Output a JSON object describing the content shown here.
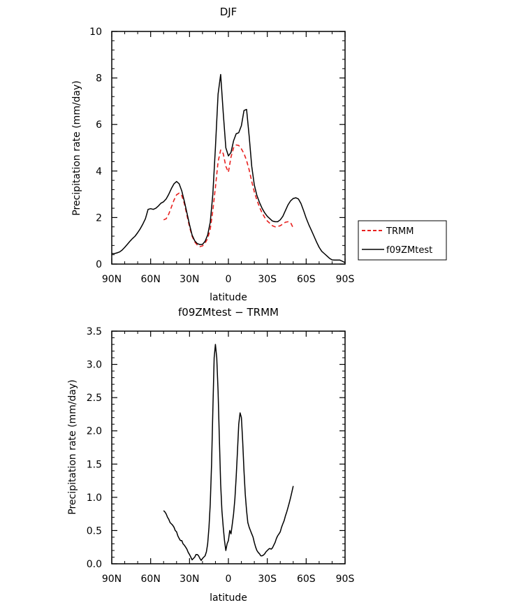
{
  "chart_data": [
    {
      "type": "line",
      "title": "DJF",
      "xlabel": "latitude",
      "ylabel": "Precipitation rate (mm/day)",
      "x_ticks": [
        "90N",
        "60N",
        "30N",
        "0",
        "30S",
        "60S",
        "90S"
      ],
      "x_tick_values": [
        90,
        60,
        30,
        0,
        -30,
        -60,
        -90
      ],
      "xlim": [
        90,
        -90
      ],
      "ylim": [
        0,
        10
      ],
      "y_ticks": [
        "0",
        "2",
        "4",
        "6",
        "8",
        "10"
      ],
      "y_tick_values": [
        0,
        2,
        4,
        6,
        8,
        10
      ],
      "legend": {
        "placement": "right",
        "items": [
          {
            "label": "TRMM",
            "color": "#e8201e",
            "style": "dashed"
          },
          {
            "label": "f09ZMtest",
            "color": "#000000",
            "style": "solid"
          }
        ]
      },
      "series": [
        {
          "name": "TRMM",
          "color": "#e8201e",
          "style": "dashed",
          "x": [
            50,
            48,
            46,
            44,
            42,
            40,
            38,
            36,
            34,
            32,
            30,
            28,
            26,
            24,
            22,
            20,
            18,
            16,
            14,
            12,
            10,
            8,
            6,
            4,
            2,
            0,
            -2,
            -4,
            -6,
            -8,
            -10,
            -12,
            -14,
            -16,
            -18,
            -20,
            -22,
            -24,
            -26,
            -28,
            -30,
            -32,
            -34,
            -36,
            -38,
            -40,
            -42,
            -44,
            -46,
            -48,
            -50
          ],
          "y": [
            1.9,
            1.95,
            2.15,
            2.45,
            2.75,
            2.98,
            3.05,
            2.95,
            2.6,
            2.1,
            1.6,
            1.2,
            0.95,
            0.82,
            0.75,
            0.78,
            0.9,
            1.1,
            1.5,
            2.3,
            3.3,
            4.4,
            4.9,
            4.75,
            4.2,
            3.95,
            4.6,
            5.0,
            5.12,
            5.1,
            4.95,
            4.75,
            4.45,
            4.05,
            3.55,
            3.1,
            2.75,
            2.45,
            2.2,
            2.0,
            1.85,
            1.75,
            1.65,
            1.6,
            1.62,
            1.65,
            1.72,
            1.8,
            1.82,
            1.78,
            1.55
          ]
        },
        {
          "name": "f09ZMtest",
          "color": "#000000",
          "style": "solid",
          "x": [
            90,
            88,
            86,
            84,
            82,
            80,
            78,
            76,
            74,
            72,
            70,
            68,
            66,
            64,
            62,
            60,
            58,
            56,
            54,
            52,
            50,
            48,
            46,
            44,
            42,
            40,
            38,
            36,
            34,
            32,
            30,
            28,
            26,
            24,
            22,
            20,
            18,
            16,
            14,
            12,
            10,
            8,
            6,
            4,
            2,
            0,
            -2,
            -4,
            -6,
            -8,
            -10,
            -12,
            -14,
            -16,
            -18,
            -20,
            -22,
            -24,
            -26,
            -28,
            -30,
            -32,
            -34,
            -36,
            -38,
            -40,
            -42,
            -44,
            -46,
            -48,
            -50,
            -52,
            -54,
            -56,
            -58,
            -60,
            -62,
            -64,
            -66,
            -68,
            -70,
            -72,
            -74,
            -76,
            -78,
            -80,
            -82,
            -84,
            -86,
            -88,
            -90
          ],
          "y": [
            0.45,
            0.45,
            0.48,
            0.52,
            0.6,
            0.72,
            0.85,
            0.98,
            1.1,
            1.2,
            1.35,
            1.52,
            1.72,
            1.95,
            2.35,
            2.38,
            2.35,
            2.4,
            2.5,
            2.62,
            2.68,
            2.8,
            3.0,
            3.25,
            3.45,
            3.55,
            3.45,
            3.15,
            2.7,
            2.2,
            1.7,
            1.25,
            1.0,
            0.88,
            0.84,
            0.85,
            0.98,
            1.25,
            1.8,
            3.0,
            5.0,
            7.3,
            8.15,
            6.5,
            5.0,
            4.65,
            4.8,
            5.3,
            5.6,
            5.65,
            5.95,
            6.6,
            6.65,
            5.5,
            4.2,
            3.4,
            2.95,
            2.65,
            2.4,
            2.2,
            2.05,
            1.95,
            1.85,
            1.82,
            1.82,
            1.9,
            2.05,
            2.3,
            2.55,
            2.72,
            2.82,
            2.85,
            2.8,
            2.6,
            2.3,
            1.98,
            1.7,
            1.45,
            1.2,
            0.95,
            0.72,
            0.55,
            0.45,
            0.35,
            0.25,
            0.18,
            0.17,
            0.17,
            0.17,
            0.12,
            0.06
          ]
        }
      ]
    },
    {
      "type": "line",
      "title": "f09ZMtest − TRMM",
      "xlabel": "latitude",
      "ylabel": "Precipitation rate (mm/day)",
      "x_ticks": [
        "90N",
        "60N",
        "30N",
        "0",
        "30S",
        "60S",
        "90S"
      ],
      "x_tick_values": [
        90,
        60,
        30,
        0,
        -30,
        -60,
        -90
      ],
      "xlim": [
        90,
        -90
      ],
      "ylim": [
        0,
        3.5
      ],
      "y_ticks": [
        "0.0",
        "0.5",
        "1.0",
        "1.5",
        "2.0",
        "2.5",
        "3.0",
        "3.5"
      ],
      "y_tick_values": [
        0,
        0.5,
        1.0,
        1.5,
        2.0,
        2.5,
        3.0,
        3.5
      ],
      "series": [
        {
          "color": "#000000",
          "style": "solid",
          "x": [
            50,
            49,
            48,
            47,
            46,
            45,
            44,
            43,
            42,
            41,
            40,
            39,
            38,
            37,
            36,
            35,
            34,
            33,
            32,
            31,
            30,
            29,
            28,
            27,
            26,
            25,
            24,
            23,
            22,
            21,
            20,
            19,
            18,
            17,
            16,
            15,
            14,
            13,
            12,
            11,
            10,
            9,
            8,
            7,
            6,
            5,
            4,
            3,
            2,
            1,
            0,
            -1,
            -2,
            -3,
            -4,
            -5,
            -6,
            -7,
            -8,
            -9,
            -10,
            -11,
            -12,
            -13,
            -14,
            -15,
            -16,
            -17,
            -18,
            -19,
            -20,
            -21,
            -22,
            -23,
            -24,
            -25,
            -26,
            -27,
            -28,
            -29,
            -30,
            -31,
            -32,
            -33,
            -34,
            -35,
            -36,
            -37,
            -38,
            -39,
            -40,
            -41,
            -42,
            -43,
            -44,
            -45,
            -46,
            -47,
            -48,
            -49,
            -50
          ],
          "y": [
            0.8,
            0.78,
            0.75,
            0.7,
            0.67,
            0.62,
            0.6,
            0.58,
            0.55,
            0.5,
            0.48,
            0.42,
            0.38,
            0.35,
            0.35,
            0.3,
            0.28,
            0.25,
            0.22,
            0.17,
            0.14,
            0.1,
            0.06,
            0.08,
            0.1,
            0.14,
            0.14,
            0.12,
            0.08,
            0.05,
            0.08,
            0.1,
            0.12,
            0.18,
            0.3,
            0.55,
            0.9,
            1.5,
            2.3,
            3.1,
            3.3,
            3.1,
            2.6,
            1.9,
            1.2,
            0.8,
            0.55,
            0.35,
            0.2,
            0.3,
            0.35,
            0.5,
            0.45,
            0.6,
            0.75,
            0.98,
            1.3,
            1.7,
            2.1,
            2.27,
            2.2,
            1.85,
            1.4,
            1.05,
            0.8,
            0.62,
            0.55,
            0.5,
            0.45,
            0.4,
            0.32,
            0.25,
            0.2,
            0.17,
            0.15,
            0.12,
            0.12,
            0.13,
            0.15,
            0.18,
            0.2,
            0.22,
            0.23,
            0.22,
            0.24,
            0.28,
            0.32,
            0.38,
            0.42,
            0.45,
            0.48,
            0.55,
            0.6,
            0.65,
            0.72,
            0.78,
            0.85,
            0.92,
            1.0,
            1.08,
            1.17
          ]
        }
      ]
    }
  ]
}
